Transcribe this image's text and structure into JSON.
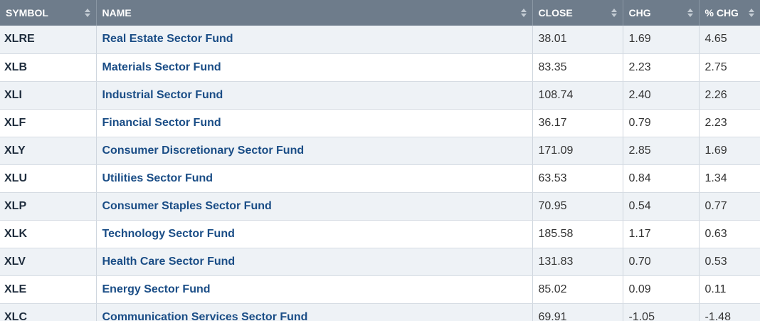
{
  "table": {
    "headers": [
      "SYMBOL",
      "NAME",
      "CLOSE",
      "CHG",
      "% CHG"
    ],
    "rows": [
      [
        "XLRE",
        "Real Estate Sector Fund",
        "38.01",
        "1.69",
        "4.65"
      ],
      [
        "XLB",
        "Materials Sector Fund",
        "83.35",
        "2.23",
        "2.75"
      ],
      [
        "XLI",
        "Industrial Sector Fund",
        "108.74",
        "2.40",
        "2.26"
      ],
      [
        "XLF",
        "Financial Sector Fund",
        "36.17",
        "0.79",
        "2.23"
      ],
      [
        "XLY",
        "Consumer Discretionary Sector Fund",
        "171.09",
        "2.85",
        "1.69"
      ],
      [
        "XLU",
        "Utilities Sector Fund",
        "63.53",
        "0.84",
        "1.34"
      ],
      [
        "XLP",
        "Consumer Staples Sector Fund",
        "70.95",
        "0.54",
        "0.77"
      ],
      [
        "XLK",
        "Technology Sector Fund",
        "185.58",
        "1.17",
        "0.63"
      ],
      [
        "XLV",
        "Health Care Sector Fund",
        "131.83",
        "0.70",
        "0.53"
      ],
      [
        "XLE",
        "Energy Sector Fund",
        "85.02",
        "0.09",
        "0.11"
      ],
      [
        "XLC",
        "Communication Services Sector Fund",
        "69.91",
        "-1.05",
        "-1.48"
      ]
    ]
  }
}
